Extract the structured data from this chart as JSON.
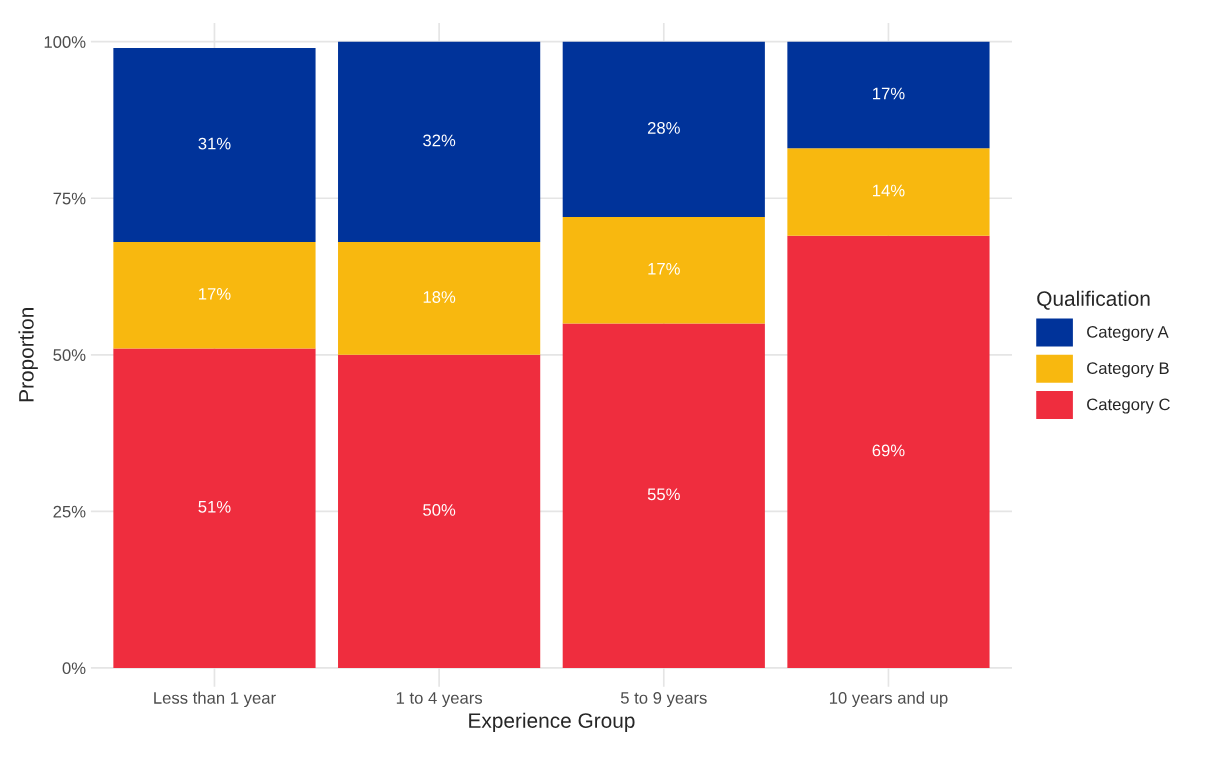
{
  "chart_data": {
    "type": "bar",
    "stacked": true,
    "xlabel": "Experience Group",
    "ylabel": "Proportion",
    "legend_title": "Qualification",
    "legend": "right",
    "grid": true,
    "categories": [
      "Less than 1 year",
      "1 to 4 years",
      "5 to 9 years",
      "10 years and up"
    ],
    "series": [
      {
        "name": "Category C",
        "color": "#ef2d3e",
        "values": [
          51,
          50,
          55,
          69
        ],
        "value_labels": [
          "51%",
          "50%",
          "55%",
          "69%"
        ]
      },
      {
        "name": "Category B",
        "color": "#f8b80f",
        "values": [
          17,
          18,
          17,
          14
        ],
        "value_labels": [
          "17%",
          "18%",
          "17%",
          "14%"
        ]
      },
      {
        "name": "Category A",
        "color": "#00339a",
        "values": [
          31,
          32,
          28,
          17
        ],
        "value_labels": [
          "31%",
          "32%",
          "28%",
          "17%"
        ]
      }
    ],
    "ylim": [
      -3,
      103
    ],
    "yticks": [
      {
        "value": 0,
        "label": "0%"
      },
      {
        "value": 25,
        "label": "25%"
      },
      {
        "value": 50,
        "label": "50%"
      },
      {
        "value": 75,
        "label": "75%"
      },
      {
        "value": 100,
        "label": "100%"
      }
    ]
  }
}
